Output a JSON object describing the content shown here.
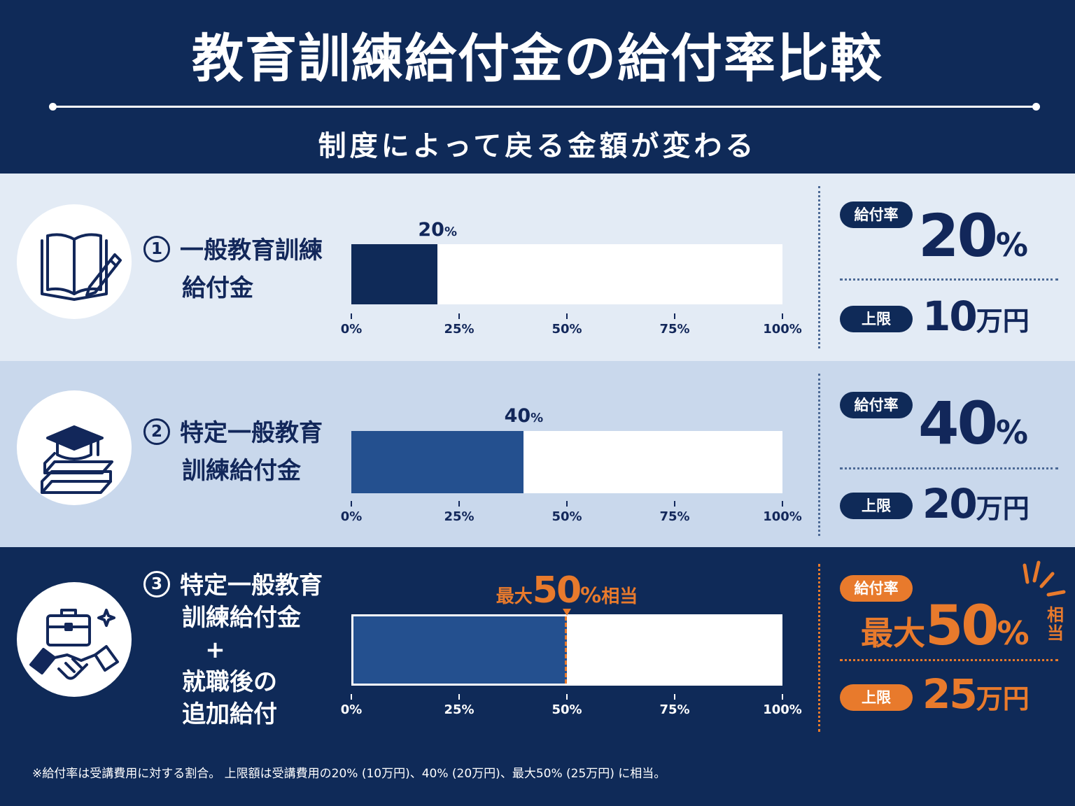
{
  "title": "教育訓練給付金の給付率比較",
  "subtitle": "制度によって戻る金額が変わる",
  "axis_ticks": [
    "0%",
    "25%",
    "50%",
    "75%",
    "100%"
  ],
  "colors": {
    "navy": "#0f2a58",
    "bar_dark": "#0f2a58",
    "bar_mid": "#24508f",
    "accent_orange": "#e87a2c",
    "row1_bg": "#e3ebf5",
    "row2_bg": "#c9d8ec"
  },
  "rows": [
    {
      "number": "1",
      "label_line1": "一般教育訓練",
      "label_line2": "給付金",
      "icon": "open-book-pencil-icon",
      "bar_value_percent": 20,
      "bar_label_num": "20",
      "bar_label_unit": "%",
      "rate_pill": "給付率",
      "rate_num": "20",
      "rate_unit": "%",
      "limit_pill": "上限",
      "limit_num": "10",
      "limit_unit": "万円"
    },
    {
      "number": "2",
      "label_line1": "特定一般教育",
      "label_line2": "訓練給付金",
      "icon": "graduation-cap-books-icon",
      "bar_value_percent": 40,
      "bar_label_num": "40",
      "bar_label_unit": "%",
      "rate_pill": "給付率",
      "rate_num": "40",
      "rate_unit": "%",
      "limit_pill": "上限",
      "limit_num": "20",
      "limit_unit": "万円"
    },
    {
      "number": "3",
      "label_line1": "特定一般教育",
      "label_line2": "訓練給付金",
      "label_plus": "+",
      "label_line3": "就職後の",
      "label_line4": "追加給付",
      "icon": "briefcase-handshake-icon",
      "bar_value_percent": 50,
      "bar_label_prefix": "最大",
      "bar_label_num": "50",
      "bar_label_unit": "%",
      "bar_label_suffix": "相当",
      "rate_pill": "給付率",
      "rate_prefix": "最大",
      "rate_num": "50",
      "rate_unit": "%",
      "rate_suffix_1": "相",
      "rate_suffix_2": "当",
      "limit_pill": "上限",
      "limit_num": "25",
      "limit_unit": "万円"
    }
  ],
  "footnote": "※給付率は受講費用に対する割合。 上限額は受講費用の20% (10万円)、40% (20万円)、最大50% (25万円) に相当。"
}
